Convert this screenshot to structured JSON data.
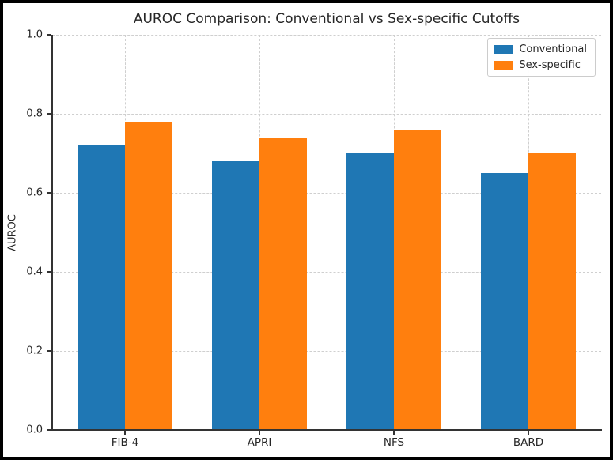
{
  "chart_data": {
    "type": "bar",
    "title": "AUROC Comparison: Conventional vs Sex-specific Cutoffs",
    "xlabel": "",
    "ylabel": "AUROC",
    "categories": [
      "FIB-4",
      "APRI",
      "NFS",
      "BARD"
    ],
    "series": [
      {
        "name": "Conventional",
        "color": "#1f77b4",
        "values": [
          0.72,
          0.68,
          0.7,
          0.65
        ]
      },
      {
        "name": "Sex-specific",
        "color": "#ff7f0e",
        "values": [
          0.78,
          0.74,
          0.76,
          0.7
        ]
      }
    ],
    "ylim": [
      0.0,
      1.0
    ],
    "yticks": [
      "0.0",
      "0.2",
      "0.4",
      "0.6",
      "0.8",
      "1.0"
    ],
    "grid": true,
    "grid_style": "dashed",
    "legend_position": "upper right",
    "colors": {
      "grid": "#cfcfcf",
      "spine": "#333333",
      "text": "#262626",
      "figure_border": "#000000",
      "background": "#ffffff"
    }
  }
}
